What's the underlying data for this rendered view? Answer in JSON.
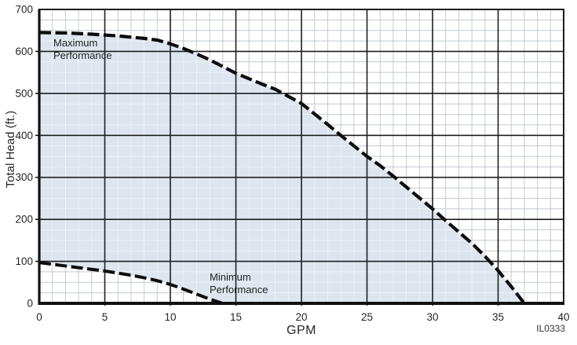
{
  "figure": {
    "code": "IL0333"
  },
  "colors": {
    "background": "#ffffff",
    "region_fill": "#dee5ef",
    "grid_minor": "#c4cad2",
    "grid_minor_on_fill": "#f2f5f9",
    "grid_major": "#1f1f1f",
    "axis": "#111111",
    "curve": "#0d0d0d",
    "text": "#262626"
  },
  "chart_data": {
    "type": "area",
    "title": "",
    "xlabel": "GPM",
    "ylabel": "Total Head (ft.)",
    "xlim": [
      0,
      40
    ],
    "ylim": [
      0,
      700
    ],
    "x_major_ticks": [
      0,
      5,
      10,
      15,
      20,
      25,
      30,
      35,
      40
    ],
    "y_major_ticks": [
      0,
      100,
      200,
      300,
      400,
      500,
      600,
      700
    ],
    "x_minor_step": 1,
    "y_minor_step": 25,
    "grid": "on",
    "legend_position": "none",
    "series": [
      {
        "name": "Maximum Performance",
        "style": "dashed-thick",
        "x": [
          0,
          2,
          4,
          6,
          8,
          9,
          10,
          11,
          12,
          13,
          14,
          15,
          16,
          17,
          18,
          19,
          20,
          21,
          22,
          23,
          24,
          25,
          26,
          27,
          28,
          29,
          30,
          31,
          32,
          33,
          34,
          35,
          36,
          37
        ],
        "y": [
          645,
          644,
          641,
          637,
          631,
          627,
          618,
          607,
          594,
          580,
          564,
          548,
          535,
          522,
          510,
          493,
          476,
          451,
          426,
          400,
          375,
          350,
          328,
          303,
          277,
          251,
          225,
          197,
          170,
          143,
          112,
          78,
          40,
          0
        ]
      },
      {
        "name": "Minimum Performance",
        "style": "dashed-thick",
        "x": [
          0,
          1,
          2,
          3,
          4,
          5,
          6,
          7,
          8,
          9,
          10,
          11,
          12,
          13,
          14
        ],
        "y": [
          97,
          93,
          89,
          85,
          81,
          77,
          72,
          67,
          61,
          54,
          45,
          34,
          22,
          10,
          0
        ]
      }
    ],
    "shaded_region": "between Maximum Performance curve (above), Minimum Performance curve and x-axis (below)",
    "annotations": [
      {
        "id": "max",
        "line1": "Maximum",
        "line2": "Performance",
        "x_gpm": 1.1,
        "y_ft": 608
      },
      {
        "id": "min",
        "line1": "Minimum",
        "line2": "Performance",
        "x_gpm": 13.0,
        "y_ft": 52
      }
    ]
  }
}
